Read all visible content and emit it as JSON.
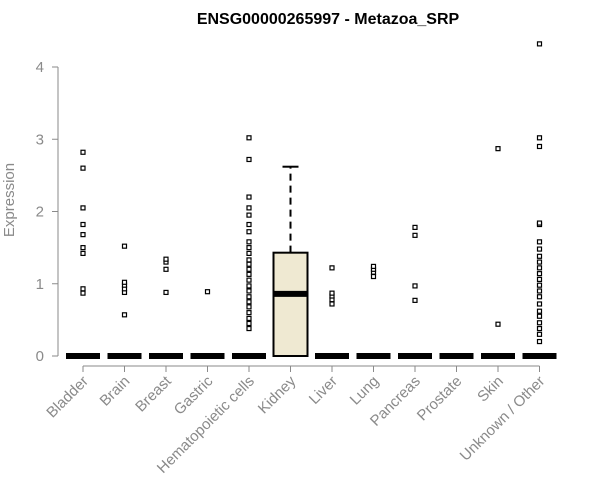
{
  "chart_data": {
    "type": "box",
    "title": "ENSG00000265997 - Metazoa_SRP",
    "xlabel": "",
    "ylabel": "Expression",
    "ylim": [
      0,
      4.4
    ],
    "yticks": [
      0,
      1,
      2,
      3,
      4
    ],
    "ytick_labels": [
      "0",
      "1",
      "2",
      "3",
      "4"
    ],
    "grid": false,
    "box_fill": "#efe9d2",
    "categories": [
      {
        "name": "Bladder",
        "box": null,
        "outliers": [
          0.87,
          0.93,
          1.42,
          1.5,
          1.68,
          1.82,
          2.05,
          2.6,
          2.82
        ]
      },
      {
        "name": "Brain",
        "box": null,
        "outliers": [
          0.57,
          0.88,
          0.93,
          0.98,
          1.02,
          1.52
        ]
      },
      {
        "name": "Breast",
        "box": null,
        "outliers": [
          0.88,
          1.2,
          1.3,
          1.34
        ]
      },
      {
        "name": "Gastric",
        "box": null,
        "outliers": [
          0.89
        ]
      },
      {
        "name": "Hematopoietic cells",
        "box": null,
        "outliers": [
          0.38,
          0.45,
          0.52,
          0.6,
          0.68,
          0.75,
          0.82,
          0.9,
          0.97,
          1.05,
          1.13,
          1.2,
          1.27,
          1.33,
          1.42,
          1.5,
          1.58,
          1.72,
          1.82,
          1.95,
          2.05,
          2.2,
          2.72,
          3.02
        ]
      },
      {
        "name": "Kidney",
        "box": {
          "min": 0,
          "q1": 0,
          "median": 0.86,
          "q3": 1.43,
          "max": 2.62
        },
        "outliers": []
      },
      {
        "name": "Liver",
        "box": null,
        "outliers": [
          0.72,
          0.78,
          0.83,
          0.87,
          1.22
        ]
      },
      {
        "name": "Lung",
        "box": null,
        "outliers": [
          1.1,
          1.16,
          1.2,
          1.24
        ]
      },
      {
        "name": "Pancreas",
        "box": null,
        "outliers": [
          0.77,
          0.97,
          1.67,
          1.78
        ]
      },
      {
        "name": "Prostate",
        "box": null,
        "outliers": []
      },
      {
        "name": "Skin",
        "box": null,
        "outliers": [
          0.44,
          2.87
        ]
      },
      {
        "name": "Unknown / Other",
        "box": null,
        "outliers": [
          0.2,
          0.3,
          0.38,
          0.46,
          0.55,
          0.62,
          0.72,
          0.82,
          0.9,
          0.98,
          1.06,
          1.14,
          1.22,
          1.3,
          1.38,
          1.48,
          1.58,
          1.82,
          1.84,
          2.9,
          3.02,
          4.32
        ]
      }
    ]
  }
}
